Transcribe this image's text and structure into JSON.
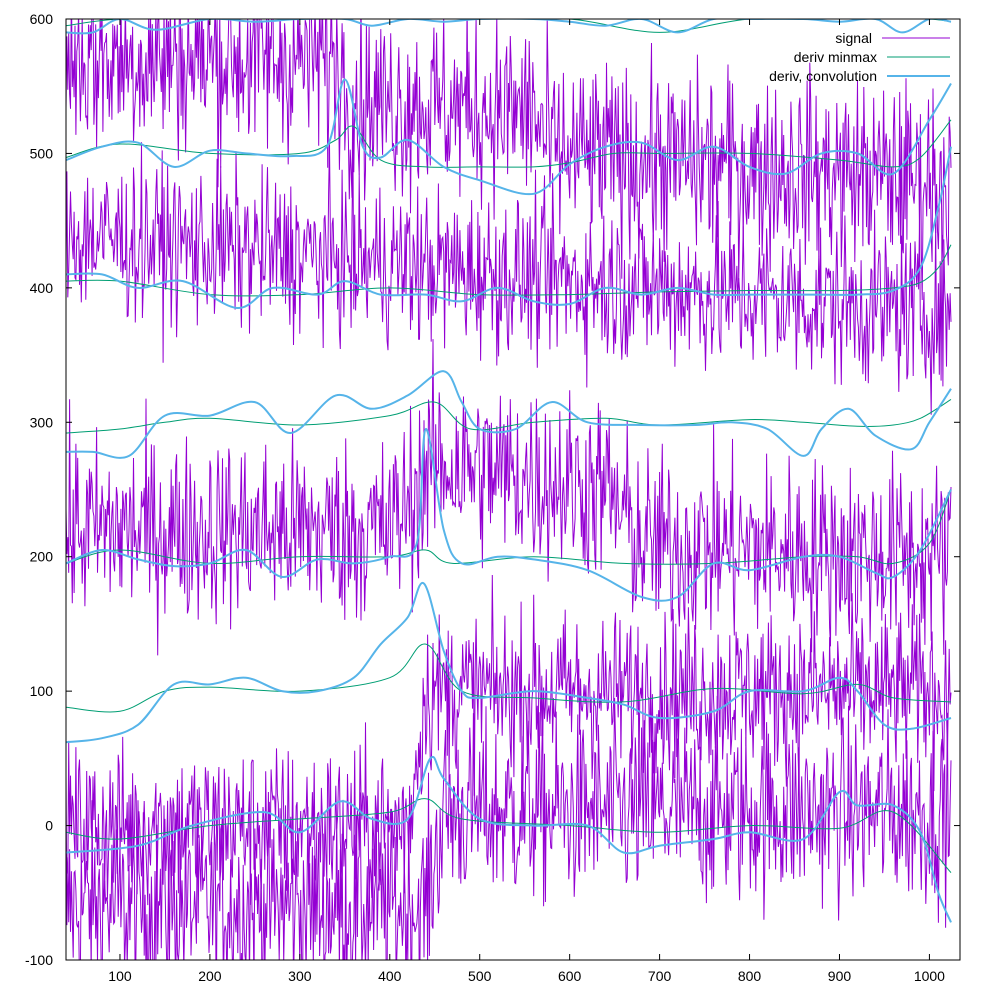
{
  "chart_data": {
    "type": "line",
    "title": "",
    "xlabel": "",
    "ylabel": "",
    "xlim": [
      40,
      1034
    ],
    "ylim": [
      -100,
      600
    ],
    "grid": false,
    "legend_placement": "top-right",
    "x_ticks": [
      {
        "value": 100,
        "label": "100"
      },
      {
        "value": 200,
        "label": "200"
      },
      {
        "value": 300,
        "label": "300"
      },
      {
        "value": 400,
        "label": "400"
      },
      {
        "value": 500,
        "label": "500"
      },
      {
        "value": 600,
        "label": "600"
      },
      {
        "value": 700,
        "label": "700"
      },
      {
        "value": 800,
        "label": "800"
      },
      {
        "value": 900,
        "label": "900"
      },
      {
        "value": 1000,
        "label": "1000"
      }
    ],
    "y_ticks": [
      {
        "value": -100,
        "label": "-100"
      },
      {
        "value": 0,
        "label": "0"
      },
      {
        "value": 100,
        "label": "100"
      },
      {
        "value": 200,
        "label": "200"
      },
      {
        "value": 300,
        "label": "300"
      },
      {
        "value": 400,
        "label": "400"
      },
      {
        "value": 500,
        "label": "500"
      },
      {
        "value": 600,
        "label": "600"
      }
    ],
    "legend": [
      {
        "label": "signal",
        "color": "#9400d3"
      },
      {
        "label": "deriv minmax",
        "color": "#009e73"
      },
      {
        "label": "deriv, convolution",
        "color": "#56b4e9"
      }
    ],
    "series": [
      {
        "name": "signal",
        "color": "#9400d3",
        "groups": [
          {
            "x": [
              40,
              440,
              460,
              1024
            ],
            "y": [
              -60,
              -60,
              10,
              10
            ],
            "noise": 35
          },
          {
            "x": [
              40,
              420,
              440,
              1024
            ],
            "y": [
              0,
              0,
              100,
              100
            ],
            "noise": 30
          },
          {
            "x": [
              40,
              400,
              450,
              640,
              680,
              1024
            ],
            "y": [
              220,
              220,
              270,
              250,
              210,
              200
            ],
            "noise": 35
          },
          {
            "x": [
              40,
              1024
            ],
            "y": [
              440,
              380
            ],
            "noise": 30
          },
          {
            "x": [
              40,
              340,
              360,
              560,
              580,
              1024
            ],
            "y": [
              570,
              570,
              540,
              530,
              500,
              480
            ],
            "noise": 35
          }
        ]
      },
      {
        "name": "deriv minmax",
        "color": "#009e73",
        "groups": [
          {
            "x": [
              40,
              100,
              200,
              300,
              400,
              440,
              480,
              600,
              700,
              800,
              900,
              960,
              1024
            ],
            "y": [
              -5,
              -10,
              0,
              5,
              10,
              20,
              5,
              0,
              -5,
              0,
              -2,
              10,
              -35
            ]
          },
          {
            "x": [
              40,
              100,
              150,
              200,
              300,
              400,
              440,
              480,
              560,
              660,
              760,
              860,
              920,
              960,
              1024
            ],
            "y": [
              88,
              85,
              100,
              103,
              100,
              110,
              135,
              100,
              95,
              92,
              102,
              98,
              105,
              95,
              92
            ]
          },
          {
            "x": [
              40,
              100,
              200,
              300,
              400,
              440,
              470,
              560,
              660,
              760,
              860,
              920,
              960,
              1000,
              1024
            ],
            "y": [
              195,
              205,
              195,
              200,
              200,
              205,
              195,
              200,
              195,
              195,
              200,
              200,
              195,
              210,
              250
            ]
          },
          {
            "x": [
              40,
              100,
              150,
              200,
              300,
              400,
              450,
              490,
              560,
              640,
              700,
              800,
              860,
              920,
              960,
              990,
              1024
            ],
            "y": [
              292,
              295,
              300,
              303,
              298,
              305,
              315,
              295,
              300,
              303,
              298,
              302,
              300,
              297,
              298,
              303,
              317
            ]
          },
          {
            "x": [
              40,
              100,
              200,
              300,
              400,
              500,
              600,
              700,
              800,
              900,
              960,
              990,
              1010,
              1024
            ],
            "y": [
              405,
              405,
              395,
              395,
              400,
              395,
              395,
              397,
              398,
              398,
              400,
              404,
              415,
              432
            ]
          },
          {
            "x": [
              40,
              100,
              200,
              300,
              340,
              360,
              390,
              440,
              500,
              560,
              600,
              650,
              700,
              800,
              900,
              960,
              990,
              1024
            ],
            "y": [
              497,
              507,
              500,
              500,
              510,
              520,
              495,
              490,
              490,
              490,
              493,
              500,
              500,
              500,
              495,
              490,
              497,
              525
            ]
          },
          {
            "x": [
              40,
              100,
              200,
              300,
              400,
              500,
              600,
              700,
              800,
              900,
              960,
              1000,
              1024
            ],
            "y": [
              595,
              600,
              600,
              600,
              600,
              600,
              600,
              590,
              600,
              600,
              600,
              600,
              598
            ]
          }
        ]
      },
      {
        "name": "deriv, convolution",
        "color": "#56b4e9",
        "groups": [
          {
            "x": [
              40,
              120,
              180,
              260,
              300,
              345,
              380,
              420,
              445,
              460,
              500,
              560,
              620,
              660,
              700,
              760,
              800,
              860,
              900,
              920,
              960,
              990,
              1010,
              1024
            ],
            "y": [
              -20,
              -15,
              0,
              10,
              -5,
              18,
              5,
              5,
              50,
              35,
              5,
              0,
              0,
              -20,
              -15,
              -10,
              -5,
              -10,
              25,
              15,
              15,
              -5,
              -50,
              -72
            ]
          },
          {
            "x": [
              40,
              80,
              120,
              160,
              200,
              240,
              280,
              320,
              360,
              390,
              420,
              438,
              460,
              480,
              500,
              560,
              620,
              660,
              700,
              760,
              800,
              860,
              900,
              920,
              950,
              980,
              1024
            ],
            "y": [
              62,
              65,
              75,
              105,
              105,
              110,
              100,
              100,
              110,
              135,
              155,
              180,
              130,
              100,
              95,
              100,
              95,
              90,
              80,
              85,
              100,
              100,
              110,
              100,
              75,
              72,
              80
            ]
          },
          {
            "x": [
              40,
              80,
              120,
              160,
              200,
              240,
              280,
              320,
              360,
              400,
              430,
              440,
              460,
              480,
              520,
              560,
              620,
              680,
              720,
              760,
              800,
              860,
              900,
              940,
              960,
              990,
              1024
            ],
            "y": [
              195,
              205,
              198,
              193,
              195,
              205,
              185,
              198,
              195,
              200,
              210,
              295,
              220,
              195,
              200,
              198,
              190,
              170,
              170,
              195,
              190,
              200,
              200,
              188,
              185,
              205,
              250
            ]
          },
          {
            "x": [
              40,
              70,
              110,
              150,
              200,
              250,
              290,
              340,
              380,
              420,
              460,
              480,
              500,
              540,
              580,
              620,
              680,
              740,
              780,
              820,
              860,
              880,
              910,
              940,
              980,
              1000,
              1024
            ],
            "y": [
              278,
              278,
              275,
              305,
              305,
              315,
              292,
              320,
              310,
              320,
              338,
              315,
              295,
              295,
              315,
              300,
              298,
              298,
              300,
              295,
              275,
              295,
              310,
              290,
              280,
              300,
              325
            ]
          },
          {
            "x": [
              40,
              80,
              120,
              170,
              230,
              270,
              320,
              350,
              390,
              440,
              480,
              520,
              560,
              600,
              640,
              680,
              720,
              760,
              800,
              840,
              880,
              920,
              960,
              990,
              1010,
              1024
            ],
            "y": [
              410,
              410,
              400,
              405,
              385,
              400,
              395,
              405,
              395,
              395,
              390,
              400,
              390,
              388,
              400,
              395,
              400,
              395,
              395,
              395,
              395,
              395,
              398,
              415,
              460,
              505
            ]
          },
          {
            "x": [
              40,
              80,
              120,
              160,
              200,
              240,
              290,
              330,
              350,
              370,
              390,
              420,
              460,
              500,
              560,
              600,
              640,
              680,
              720,
              760,
              800,
              840,
              880,
              920,
              960,
              1000,
              1024
            ],
            "y": [
              495,
              505,
              508,
              490,
              502,
              500,
              498,
              505,
              555,
              505,
              497,
              510,
              490,
              480,
              470,
              492,
              505,
              508,
              495,
              505,
              490,
              485,
              500,
              500,
              485,
              525,
              552
            ]
          },
          {
            "x": [
              40,
              70,
              100,
              140,
              200,
              250,
              300,
              350,
              380,
              420,
              460,
              500,
              560,
              600,
              640,
              680,
              720,
              760,
              800,
              860,
              900,
              940,
              970,
              1000,
              1024
            ],
            "y": [
              590,
              590,
              600,
              592,
              600,
              598,
              600,
              600,
              595,
              600,
              598,
              600,
              600,
              598,
              595,
              600,
              590,
              600,
              600,
              600,
              598,
              600,
              590,
              600,
              598
            ]
          }
        ]
      }
    ]
  }
}
